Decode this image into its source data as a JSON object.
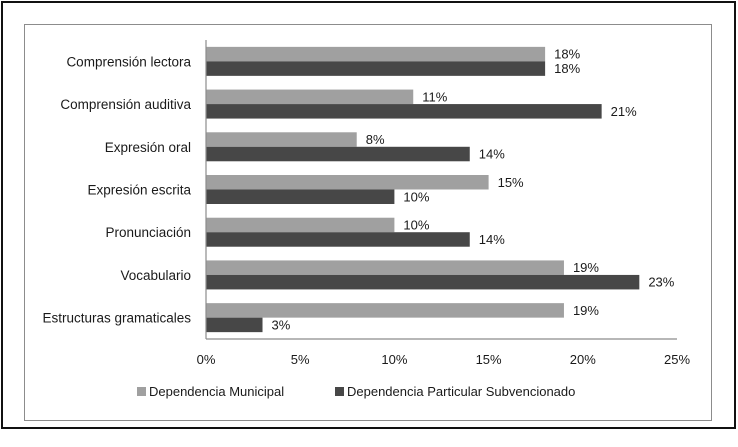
{
  "chart_data": {
    "type": "bar",
    "orientation": "horizontal",
    "title": "",
    "xlabel": "",
    "ylabel": "",
    "categories": [
      "Comprensión lectora",
      "Comprensión auditiva",
      "Expresión oral",
      "Expresión escrita",
      "Pronunciación",
      "Vocabulario",
      "Estructuras gramaticales"
    ],
    "series": [
      {
        "name": "Dependencia Municipal",
        "color": "#a0a0a0",
        "values": [
          18,
          11,
          8,
          15,
          10,
          19,
          19
        ],
        "labels": [
          "18%",
          "11%",
          "8%",
          "15%",
          "10%",
          "19%",
          "19%"
        ]
      },
      {
        "name": "Dependencia Particular Subvencionado",
        "color": "#474747",
        "values": [
          18,
          21,
          14,
          10,
          14,
          23,
          3
        ],
        "labels": [
          "18%",
          "21%",
          "14%",
          "10%",
          "14%",
          "23%",
          "3%"
        ]
      }
    ],
    "xlim": [
      0,
      25
    ],
    "xticks": [
      0,
      5,
      10,
      15,
      20,
      25
    ],
    "xtick_labels": [
      "0%",
      "5%",
      "10%",
      "15%",
      "20%",
      "25%"
    ],
    "grid": false,
    "legend": {
      "position": "bottom",
      "entries": [
        "Dependencia Municipal",
        "Dependencia Particular Subvencionado"
      ]
    },
    "units": "%"
  }
}
